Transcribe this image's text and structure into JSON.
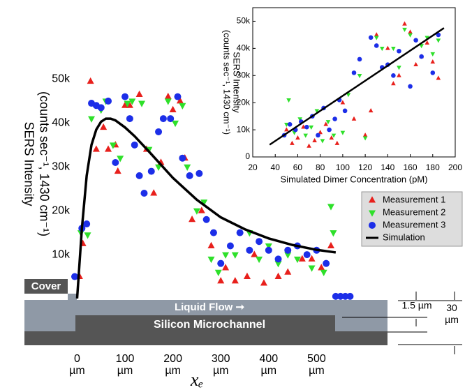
{
  "chart_data": [
    {
      "type": "scatter",
      "x_label": "xₑ",
      "y_label": [
        "SERS Intensity",
        "(counts sec⁻¹, 1430 cm⁻¹)"
      ],
      "xlim": [
        -40,
        600
      ],
      "ylim": [
        0,
        55000
      ],
      "xticks": [
        {
          "value": 0,
          "label": "0\nµm"
        },
        {
          "value": 100,
          "label": "100\nµm"
        },
        {
          "value": 200,
          "label": "200\nµm"
        },
        {
          "value": 300,
          "label": "300\nµm"
        },
        {
          "value": 400,
          "label": "400\nµm"
        },
        {
          "value": 500,
          "label": "500\nµm"
        }
      ],
      "yticks": [
        {
          "value": 10000,
          "label": "10k"
        },
        {
          "value": 20000,
          "label": "20k"
        },
        {
          "value": 30000,
          "label": "30k"
        },
        {
          "value": 40000,
          "label": "40k"
        },
        {
          "value": 50000,
          "label": "50k"
        }
      ],
      "legend": "right",
      "series": [
        {
          "name": "Measurement 1",
          "color": "#e8201c",
          "marker": "triangle",
          "x": [
            5,
            12,
            28,
            40,
            55,
            65,
            80,
            85,
            100,
            110,
            130,
            145,
            160,
            175,
            190,
            200,
            215,
            225,
            240,
            260,
            280,
            300,
            310,
            330,
            355,
            370,
            390,
            420,
            440,
            470,
            490,
            510,
            530
          ],
          "values": [
            5000,
            12500,
            49500,
            34000,
            39000,
            34000,
            35000,
            29000,
            44000,
            44000,
            46500,
            34000,
            24000,
            31000,
            46000,
            43000,
            45000,
            32000,
            18000,
            20000,
            12000,
            4000,
            7000,
            4000,
            5000,
            10000,
            3500,
            5000,
            6000,
            9000,
            9000,
            7000,
            12000
          ]
        },
        {
          "name": "Measurement 2",
          "color": "#2ee02a",
          "marker": "down",
          "x": [
            8,
            22,
            30,
            50,
            60,
            75,
            90,
            105,
            115,
            135,
            150,
            170,
            190,
            205,
            220,
            230,
            250,
            265,
            280,
            295,
            310,
            330,
            360,
            380,
            400,
            420,
            440,
            460,
            490,
            515,
            530,
            535
          ],
          "values": [
            15000,
            14500,
            41000,
            43000,
            45000,
            35000,
            32000,
            44500,
            45000,
            44500,
            34000,
            30000,
            45000,
            40000,
            44000,
            30000,
            20000,
            22000,
            9000,
            6000,
            10000,
            10000,
            15000,
            9000,
            12000,
            8000,
            10000,
            9000,
            7000,
            6000,
            21000,
            15000
          ]
        },
        {
          "name": "Measurement 3",
          "color": "#1c2ee8",
          "marker": "circle",
          "x": [
            -5,
            10,
            20,
            30,
            40,
            50,
            65,
            80,
            100,
            110,
            120,
            130,
            140,
            155,
            170,
            180,
            195,
            210,
            220,
            235,
            255,
            270,
            285,
            300,
            320,
            340,
            360,
            380,
            400,
            420,
            440,
            460,
            480,
            500,
            520,
            540,
            550,
            560,
            570
          ],
          "values": [
            5000,
            16000,
            17000,
            44500,
            44000,
            43500,
            45000,
            31000,
            46000,
            41000,
            35000,
            28000,
            24000,
            29000,
            38000,
            41000,
            41000,
            46000,
            32000,
            28000,
            28500,
            18000,
            15000,
            8000,
            12000,
            15000,
            11000,
            13000,
            11000,
            9000,
            11000,
            12000,
            10000,
            11000,
            8000,
            500,
            500,
            500,
            500
          ]
        },
        {
          "name": "Simulation",
          "color": "#000000",
          "marker": "line",
          "x": [
            0,
            5,
            10,
            20,
            30,
            40,
            50,
            60,
            70,
            80,
            100,
            120,
            150,
            200,
            250,
            300,
            350,
            400,
            450,
            500,
            540
          ],
          "values": [
            0,
            8000,
            16000,
            28000,
            35000,
            38500,
            40300,
            41000,
            41000,
            40600,
            39000,
            37000,
            33500,
            27500,
            22500,
            18500,
            15800,
            13700,
            12200,
            11100,
            10500
          ]
        }
      ]
    },
    {
      "type": "scatter",
      "x_label": "Simulated Dimer Concentration (pM)",
      "y_label": [
        "SERS Intensity",
        "(counts sec⁻¹, 1430 cm⁻¹)"
      ],
      "xlim": [
        20,
        200
      ],
      "ylim": [
        0,
        55000
      ],
      "xticks": [
        20,
        40,
        60,
        80,
        100,
        120,
        140,
        160,
        180,
        200
      ],
      "yticks": [
        0,
        {
          "value": 10000,
          "label": "10k"
        },
        {
          "value": 20000,
          "label": "20k"
        },
        {
          "value": 30000,
          "label": "30k"
        },
        {
          "value": 40000,
          "label": "40k"
        },
        {
          "value": 50000,
          "label": "50k"
        }
      ],
      "series": [
        {
          "name": "Measurement 1",
          "color": "#e8201c",
          "marker": "triangle",
          "x": [
            50,
            55,
            60,
            65,
            70,
            75,
            80,
            85,
            90,
            95,
            100,
            110,
            120,
            125,
            130,
            140,
            145,
            150,
            155,
            160,
            165,
            170,
            175,
            180,
            185
          ],
          "values": [
            10000,
            5000,
            7000,
            11000,
            4000,
            6000,
            9000,
            12000,
            7000,
            5000,
            20000,
            14000,
            8000,
            17000,
            45000,
            40000,
            27000,
            30000,
            49000,
            46000,
            34000,
            37000,
            42000,
            35000,
            29000
          ]
        },
        {
          "name": "Measurement 2",
          "color": "#2ee02a",
          "marker": "down",
          "x": [
            50,
            52,
            57,
            62,
            67,
            72,
            77,
            82,
            87,
            92,
            100,
            105,
            115,
            120,
            130,
            135,
            145,
            150,
            155,
            160,
            170,
            175,
            180,
            185
          ],
          "values": [
            12000,
            21000,
            9000,
            14000,
            8000,
            11000,
            17000,
            6000,
            13000,
            8000,
            9000,
            23000,
            30000,
            7000,
            44000,
            40000,
            40000,
            33000,
            47000,
            45000,
            41000,
            44000,
            38000,
            43000
          ]
        },
        {
          "name": "Measurement 3",
          "color": "#1c2ee8",
          "marker": "circle",
          "x": [
            48,
            53,
            58,
            63,
            68,
            73,
            78,
            83,
            88,
            93,
            97,
            102,
            110,
            115,
            125,
            130,
            135,
            140,
            145,
            150,
            160,
            165,
            170,
            180,
            185
          ],
          "values": [
            8000,
            12000,
            10000,
            13000,
            11000,
            15000,
            8000,
            18000,
            10000,
            14000,
            21000,
            17000,
            31000,
            36000,
            44000,
            41000,
            33000,
            34000,
            30000,
            39000,
            26000,
            43000,
            37000,
            31000,
            45000
          ]
        },
        {
          "name": "Simulation",
          "color": "#000000",
          "marker": "line",
          "x": [
            35,
            190
          ],
          "values": [
            4500,
            47500
          ]
        }
      ]
    }
  ],
  "diagram": {
    "cover": "Cover",
    "flow": "Liquid Flow ➞",
    "channel": "Silicon Microchannel",
    "depth": "1.5 µm",
    "height": "30\nµm"
  }
}
